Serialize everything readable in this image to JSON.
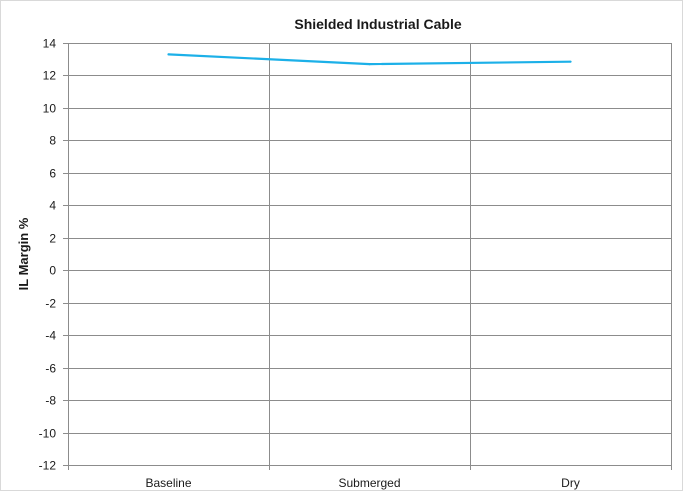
{
  "chart_data": {
    "type": "line",
    "title": "Shielded Industrial Cable",
    "xlabel": "",
    "ylabel": "IL Margin %",
    "categories": [
      "Baseline",
      "Submerged",
      "Dry"
    ],
    "series": [
      {
        "values": [
          13.3,
          12.7,
          12.85
        ],
        "color": "#1cb0e8"
      }
    ],
    "ylim": [
      -12,
      14
    ],
    "yticks": [
      14,
      12,
      10,
      8,
      6,
      4,
      2,
      0,
      -2,
      -4,
      -6,
      -8,
      -10,
      -12
    ],
    "grid": true,
    "legend": "none"
  }
}
